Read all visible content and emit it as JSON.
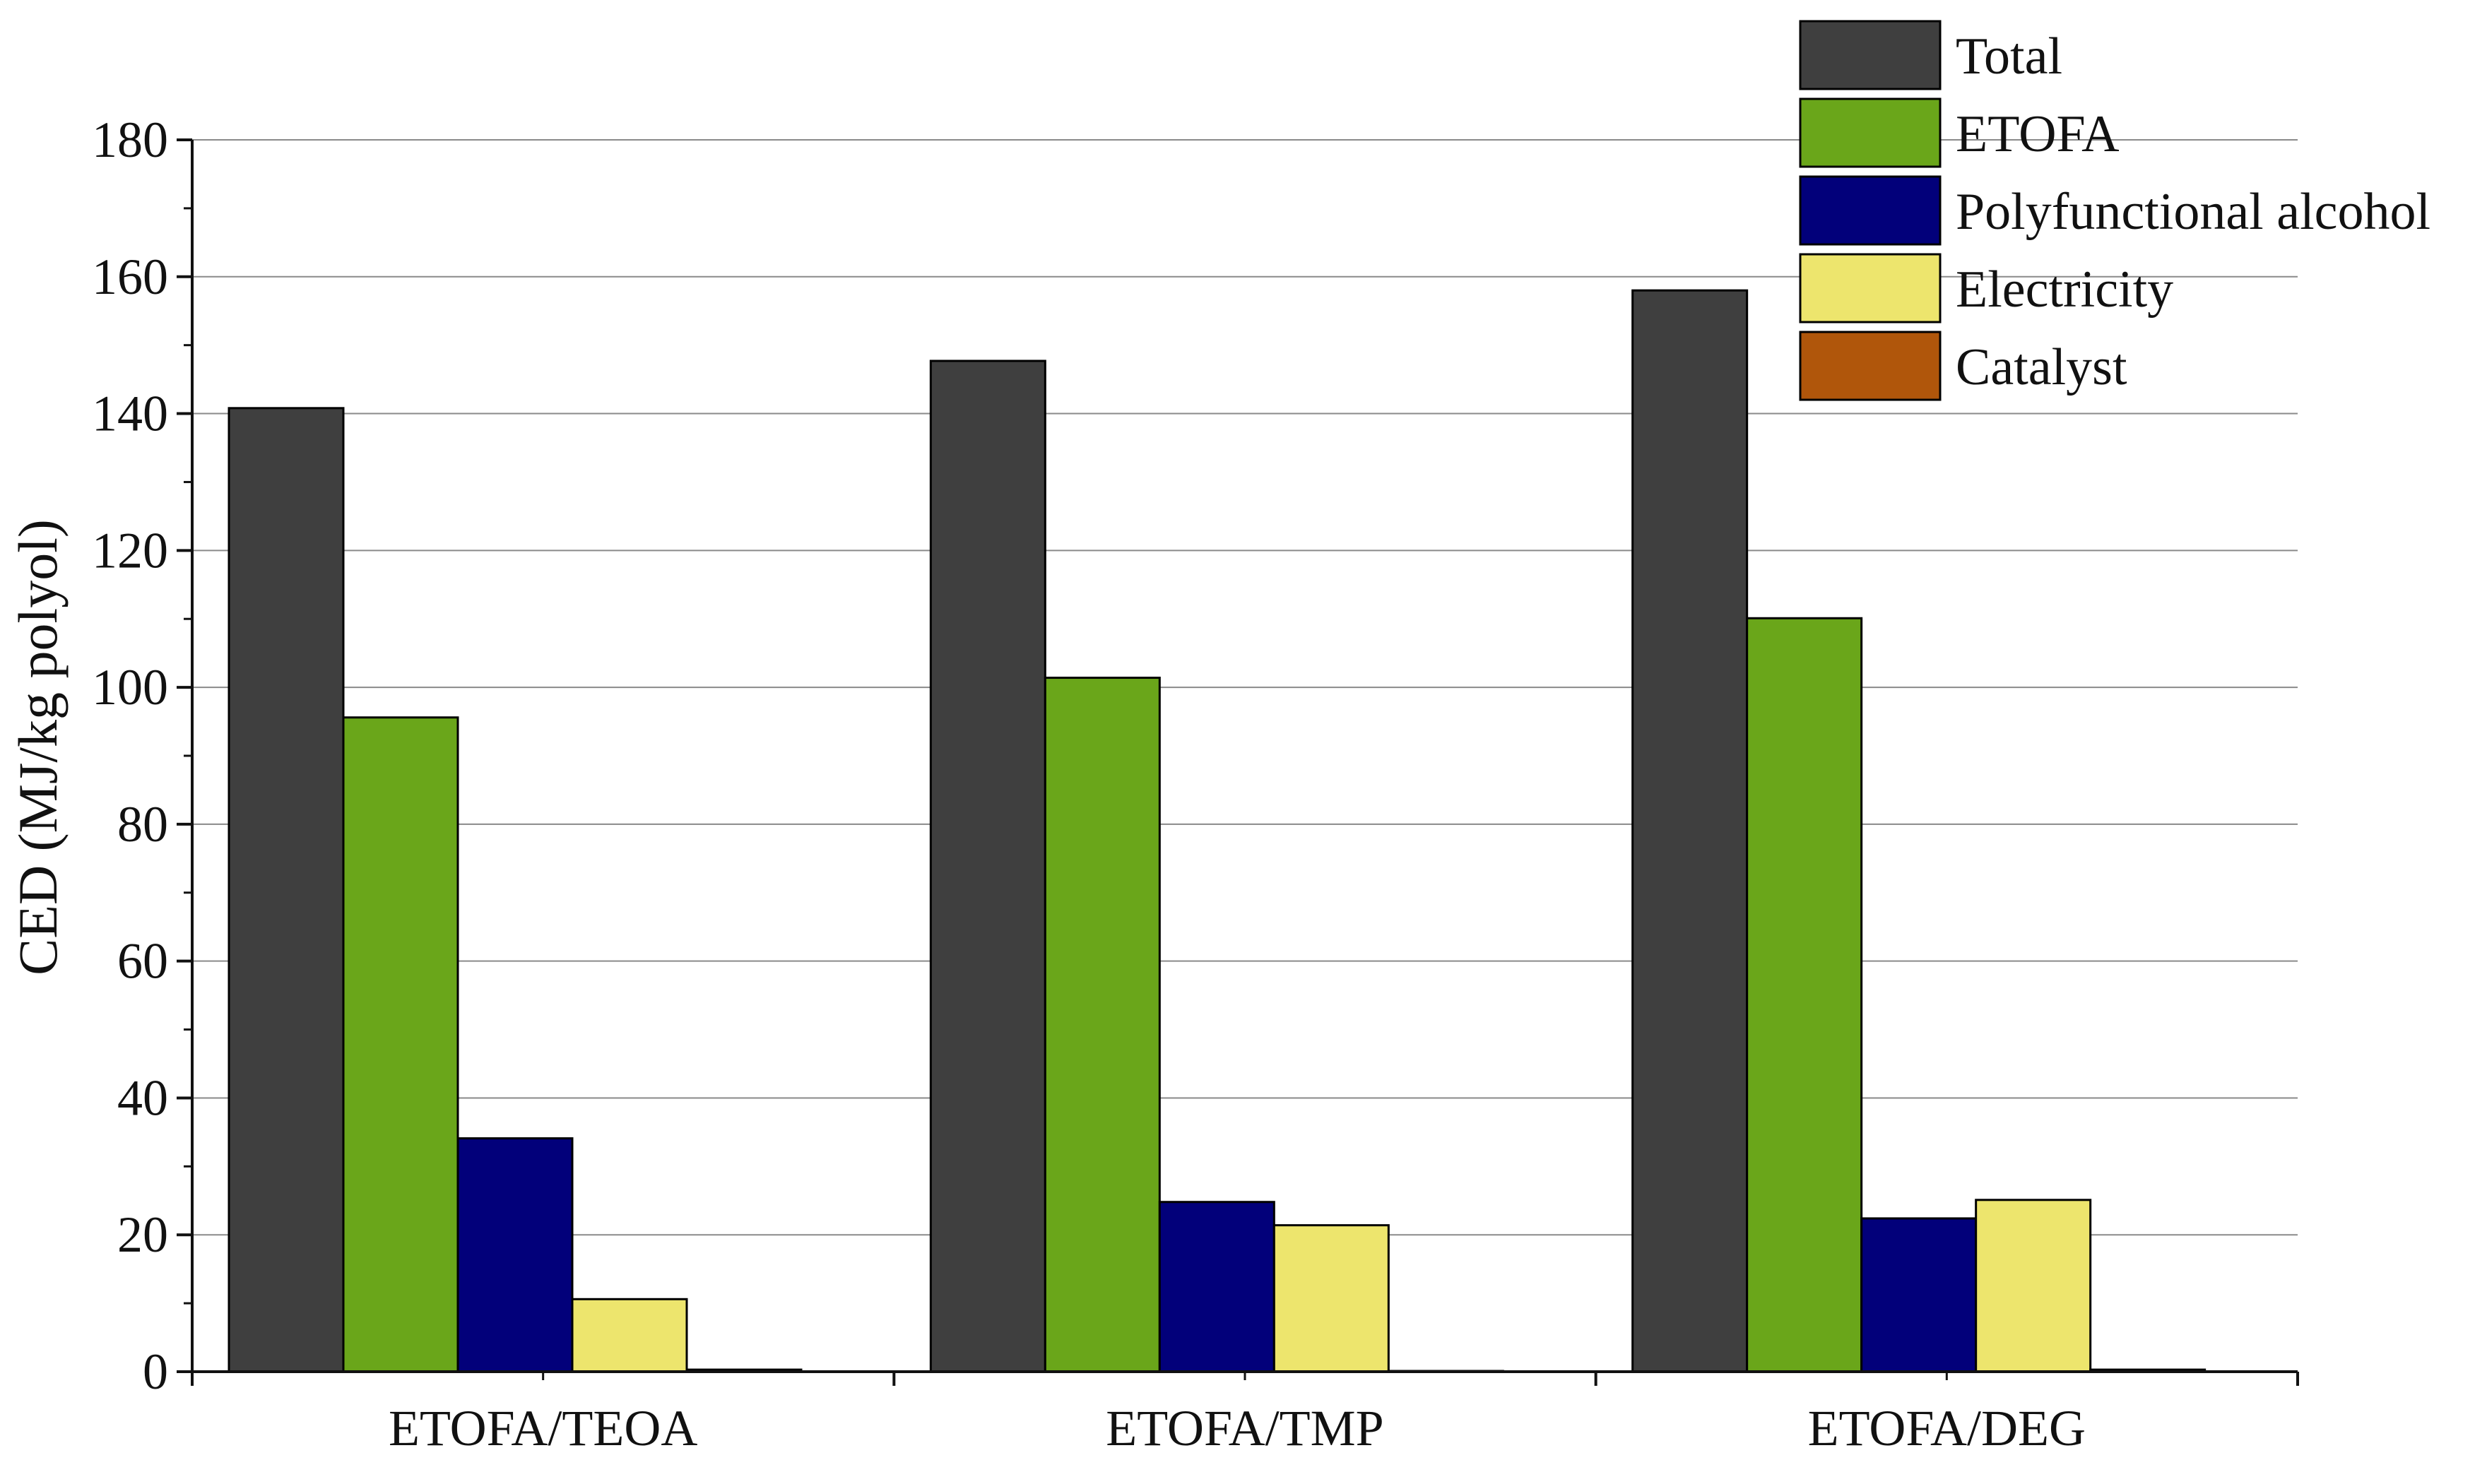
{
  "chart_data": {
    "type": "bar",
    "title": "",
    "xlabel": "",
    "ylabel": "CED (MJ/kg polyol)",
    "ylim": [
      0,
      180
    ],
    "yticks": [
      0,
      20,
      40,
      60,
      80,
      100,
      120,
      140,
      160,
      180
    ],
    "tick_labels": [
      "0",
      "20",
      "40",
      "60",
      "80",
      "100",
      "120",
      "140",
      "160",
      "180"
    ],
    "grid": true,
    "legend_position": "top-right",
    "categories": [
      "ETOFA/TEOA",
      "ETOFA/TMP",
      "ETOFA/DEG"
    ],
    "series": [
      {
        "name": "Total",
        "color": "#3f3f3f",
        "values": [
          140.8,
          147.7,
          158.0
        ]
      },
      {
        "name": "ETOFA",
        "color": "#6aa61a",
        "values": [
          95.6,
          101.4,
          110.1
        ]
      },
      {
        "name": "Polyfunctional alcohol",
        "color": "#02007a",
        "values": [
          34.1,
          24.8,
          22.4
        ]
      },
      {
        "name": "Electricity",
        "color": "#ede56d",
        "values": [
          10.6,
          21.4,
          25.1
        ]
      },
      {
        "name": "Catalyst",
        "color": "#b0560b",
        "values": [
          0.3,
          0.1,
          0.3
        ]
      }
    ]
  }
}
